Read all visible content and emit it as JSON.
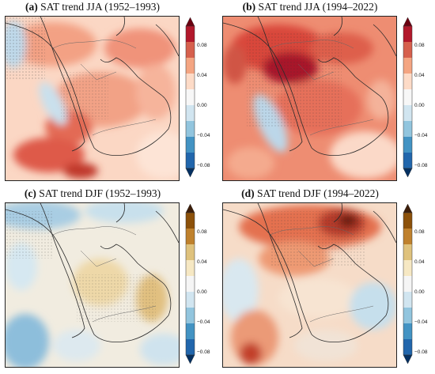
{
  "panels": [
    {
      "letter": "(a)",
      "title": "SAT trend JJA (1952–1993)",
      "palette": "warm"
    },
    {
      "letter": "(b)",
      "title": "SAT trend JJA (1994–2022)",
      "palette": "warm"
    },
    {
      "letter": "(c)",
      "title": "SAT trend DJF (1952–1993)",
      "palette": "brown"
    },
    {
      "letter": "(d)",
      "title": "SAT trend DJF (1994–2022)",
      "palette": "brown"
    }
  ],
  "colorbar": {
    "ticks": [
      "0.08",
      "0.04",
      "0.00",
      "−0.04",
      "−0.08"
    ],
    "warm": [
      "#6b0010",
      "#b2182b",
      "#d6604d",
      "#f4a582",
      "#fddbc7",
      "#f7f7f7",
      "#d1e5f0",
      "#92c5de",
      "#4393c3",
      "#2166ac",
      "#053061"
    ],
    "brown": [
      "#3d1e0a",
      "#8c510a",
      "#bf812d",
      "#dfc27d",
      "#f6e8c3",
      "#f5f5f5",
      "#d1e5f0",
      "#92c5de",
      "#4393c3",
      "#2166ac",
      "#053061"
    ]
  },
  "colors": {
    "land_warm_a": "#fbd1bd",
    "land_warm_b": "#ee8a70",
    "land_warm_c": "#c8302c",
    "cool_light": "#cfe3ee",
    "cool_mid": "#8fbfdb",
    "brown_mid": "#e2c287",
    "brown_dark": "#9a5f22"
  }
}
